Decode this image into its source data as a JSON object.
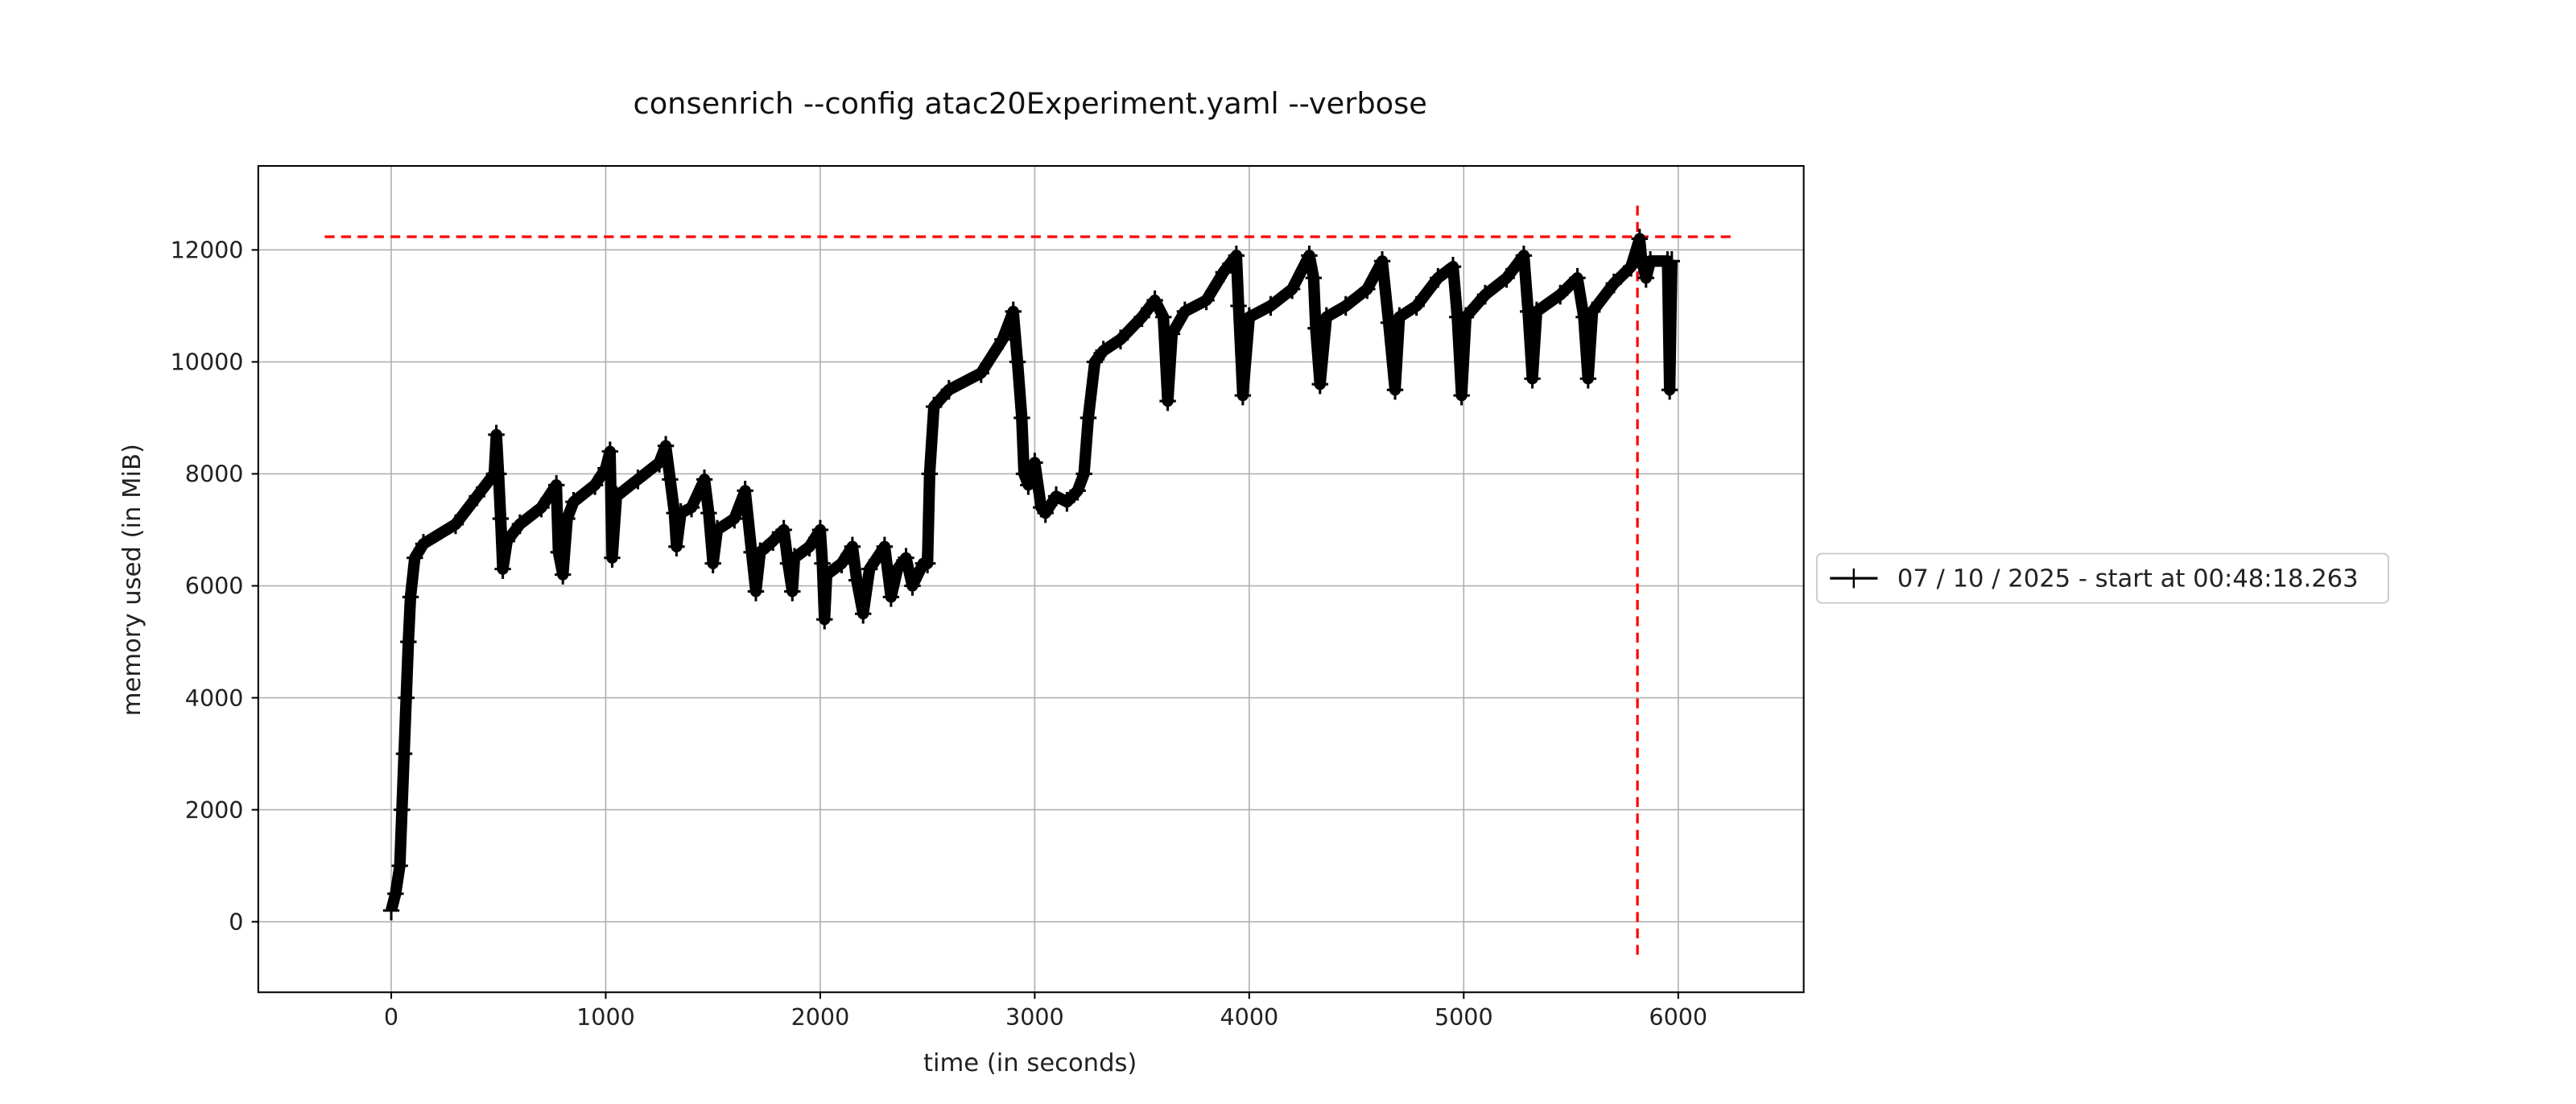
{
  "chart_data": {
    "type": "line",
    "title": "consenrich --config atac20Experiment.yaml --verbose",
    "xlabel": "time (in seconds)",
    "ylabel": "memory used (in MiB)",
    "xlim": [
      -620,
      6585
    ],
    "ylim": [
      -1260,
      13500
    ],
    "xticks": [
      0,
      1000,
      2000,
      3000,
      4000,
      5000,
      6000
    ],
    "xtick_labels": [
      "0",
      "1000",
      "2000",
      "3000",
      "4000",
      "5000",
      "6000"
    ],
    "yticks": [
      0,
      2000,
      4000,
      6000,
      8000,
      10000,
      12000
    ],
    "ytick_labels": [
      "0",
      "2000",
      "4000",
      "6000",
      "8000",
      "10000",
      "12000"
    ],
    "grid": true,
    "legend_placement": "outside-right",
    "series": [
      {
        "name": "07 / 10 / 2025 - start at 00:48:18.263",
        "color": "#000000",
        "marker": "+",
        "points": [
          [
            0,
            200
          ],
          [
            20,
            500
          ],
          [
            40,
            1000
          ],
          [
            50,
            2000
          ],
          [
            60,
            3000
          ],
          [
            70,
            4000
          ],
          [
            80,
            5000
          ],
          [
            90,
            5800
          ],
          [
            110,
            6500
          ],
          [
            150,
            6750
          ],
          [
            300,
            7100
          ],
          [
            400,
            7600
          ],
          [
            480,
            8000
          ],
          [
            490,
            8700
          ],
          [
            500,
            8000
          ],
          [
            510,
            7200
          ],
          [
            520,
            6300
          ],
          [
            540,
            6800
          ],
          [
            600,
            7100
          ],
          [
            700,
            7400
          ],
          [
            770,
            7800
          ],
          [
            780,
            6600
          ],
          [
            800,
            6200
          ],
          [
            820,
            7200
          ],
          [
            850,
            7500
          ],
          [
            950,
            7800
          ],
          [
            1000,
            8100
          ],
          [
            1020,
            8400
          ],
          [
            1030,
            6500
          ],
          [
            1050,
            7600
          ],
          [
            1150,
            7900
          ],
          [
            1250,
            8200
          ],
          [
            1280,
            8500
          ],
          [
            1300,
            7900
          ],
          [
            1320,
            7300
          ],
          [
            1330,
            6700
          ],
          [
            1350,
            7300
          ],
          [
            1400,
            7400
          ],
          [
            1460,
            7900
          ],
          [
            1480,
            7300
          ],
          [
            1500,
            6400
          ],
          [
            1520,
            7000
          ],
          [
            1600,
            7200
          ],
          [
            1650,
            7700
          ],
          [
            1680,
            6600
          ],
          [
            1700,
            5900
          ],
          [
            1720,
            6600
          ],
          [
            1780,
            6800
          ],
          [
            1830,
            7000
          ],
          [
            1850,
            6400
          ],
          [
            1870,
            5900
          ],
          [
            1880,
            6500
          ],
          [
            1950,
            6700
          ],
          [
            2000,
            7000
          ],
          [
            2010,
            6400
          ],
          [
            2020,
            5400
          ],
          [
            2030,
            6200
          ],
          [
            2100,
            6400
          ],
          [
            2150,
            6700
          ],
          [
            2170,
            6100
          ],
          [
            2200,
            5500
          ],
          [
            2230,
            6300
          ],
          [
            2300,
            6700
          ],
          [
            2330,
            5800
          ],
          [
            2360,
            6300
          ],
          [
            2400,
            6500
          ],
          [
            2430,
            6000
          ],
          [
            2480,
            6400
          ],
          [
            2500,
            6400
          ],
          [
            2510,
            8000
          ],
          [
            2530,
            9200
          ],
          [
            2600,
            9500
          ],
          [
            2750,
            9800
          ],
          [
            2850,
            10400
          ],
          [
            2900,
            10900
          ],
          [
            2920,
            10000
          ],
          [
            2940,
            9000
          ],
          [
            2950,
            8000
          ],
          [
            2970,
            7800
          ],
          [
            3000,
            8200
          ],
          [
            3030,
            7400
          ],
          [
            3050,
            7300
          ],
          [
            3100,
            7600
          ],
          [
            3150,
            7500
          ],
          [
            3200,
            7700
          ],
          [
            3230,
            8000
          ],
          [
            3250,
            9000
          ],
          [
            3280,
            10000
          ],
          [
            3320,
            10200
          ],
          [
            3400,
            10400
          ],
          [
            3500,
            10800
          ],
          [
            3560,
            11100
          ],
          [
            3600,
            10800
          ],
          [
            3620,
            9300
          ],
          [
            3640,
            10500
          ],
          [
            3700,
            10900
          ],
          [
            3800,
            11100
          ],
          [
            3880,
            11600
          ],
          [
            3940,
            11900
          ],
          [
            3950,
            11000
          ],
          [
            3970,
            9400
          ],
          [
            4000,
            10800
          ],
          [
            4100,
            11000
          ],
          [
            4200,
            11300
          ],
          [
            4280,
            11900
          ],
          [
            4300,
            11500
          ],
          [
            4310,
            10600
          ],
          [
            4330,
            9600
          ],
          [
            4360,
            10800
          ],
          [
            4450,
            11000
          ],
          [
            4550,
            11300
          ],
          [
            4620,
            11800
          ],
          [
            4650,
            10700
          ],
          [
            4680,
            9500
          ],
          [
            4700,
            10800
          ],
          [
            4780,
            11000
          ],
          [
            4880,
            11500
          ],
          [
            4950,
            11700
          ],
          [
            4970,
            10800
          ],
          [
            4990,
            9400
          ],
          [
            5010,
            10800
          ],
          [
            5100,
            11200
          ],
          [
            5200,
            11500
          ],
          [
            5280,
            11900
          ],
          [
            5300,
            10900
          ],
          [
            5320,
            9700
          ],
          [
            5340,
            10900
          ],
          [
            5450,
            11200
          ],
          [
            5530,
            11500
          ],
          [
            5560,
            10800
          ],
          [
            5580,
            9700
          ],
          [
            5600,
            10900
          ],
          [
            5700,
            11400
          ],
          [
            5780,
            11700
          ],
          [
            5820,
            12200
          ],
          [
            5830,
            11800
          ],
          [
            5850,
            11500
          ],
          [
            5870,
            11800
          ],
          [
            5950,
            11800
          ],
          [
            5960,
            9500
          ],
          [
            5970,
            11800
          ]
        ]
      }
    ],
    "annotations": {
      "peak_hline": {
        "y": 12235,
        "x_from": -310,
        "x_to": 6250,
        "color": "#ff0000",
        "style": "dashed"
      },
      "peak_vline": {
        "x": 5810,
        "y_from": -590,
        "y_to": 12820,
        "color": "#ff0000",
        "style": "dashed"
      }
    }
  }
}
